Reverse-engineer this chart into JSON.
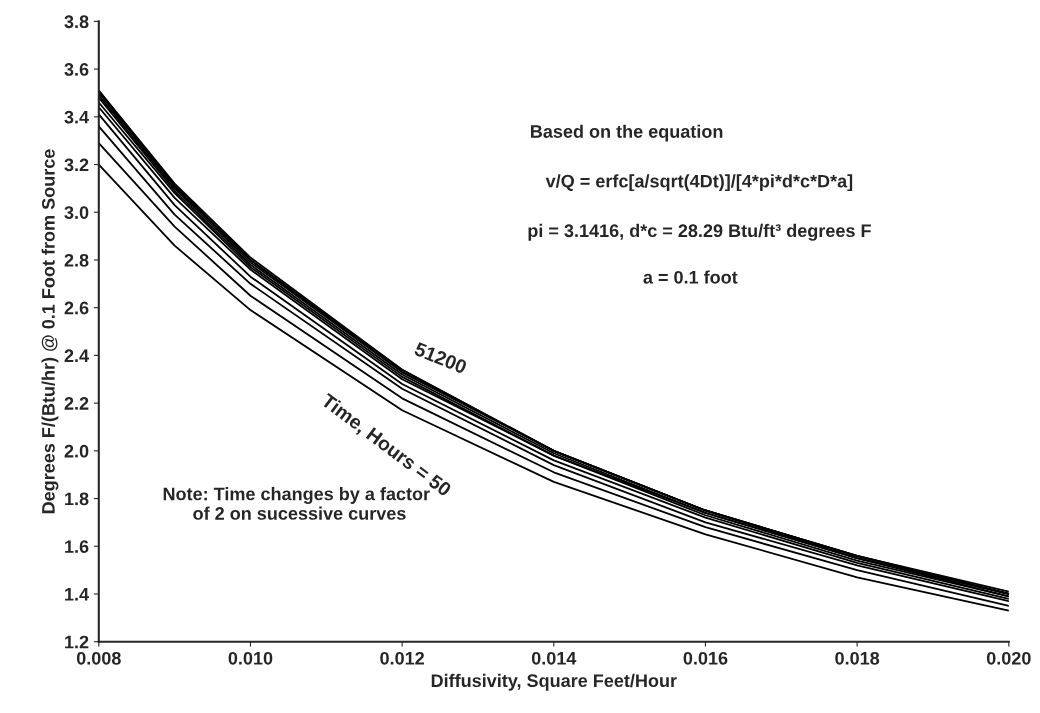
{
  "chart_data": {
    "type": "line",
    "xlabel": "Diffusivity, Square Feet/Hour",
    "ylabel": "Degrees F/(Btu/hr) @ 0.1 Foot from Source",
    "x": [
      0.008,
      0.009,
      0.01,
      0.012,
      0.014,
      0.016,
      0.018,
      0.02
    ],
    "series": [
      {
        "color": "#000000",
        "values": [
          3.2,
          2.86,
          2.59,
          2.17,
          1.87,
          1.65,
          1.47,
          1.33
        ]
      },
      {
        "color": "#000000",
        "values": [
          3.29,
          2.94,
          2.65,
          2.22,
          1.91,
          1.68,
          1.5,
          1.35
        ]
      },
      {
        "color": "#000000",
        "values": [
          3.36,
          2.99,
          2.7,
          2.26,
          1.94,
          1.7,
          1.52,
          1.37
        ]
      },
      {
        "color": "#000000",
        "values": [
          3.41,
          3.03,
          2.73,
          2.28,
          1.96,
          1.72,
          1.53,
          1.38
        ]
      },
      {
        "color": "#000000",
        "values": [
          3.44,
          3.06,
          2.76,
          2.3,
          1.98,
          1.73,
          1.54,
          1.39
        ]
      },
      {
        "color": "#000000",
        "values": [
          3.46,
          3.08,
          2.77,
          2.31,
          1.98,
          1.74,
          1.55,
          1.39
        ]
      },
      {
        "color": "#000000",
        "values": [
          3.48,
          3.09,
          2.78,
          2.32,
          1.99,
          1.74,
          1.55,
          1.4
        ]
      },
      {
        "color": "#000000",
        "values": [
          3.49,
          3.1,
          2.79,
          2.33,
          2.0,
          1.75,
          1.55,
          1.4
        ]
      },
      {
        "color": "#000000",
        "values": [
          3.5,
          3.11,
          2.8,
          2.33,
          2.0,
          1.75,
          1.56,
          1.4
        ]
      },
      {
        "color": "#000000",
        "values": [
          3.51,
          3.11,
          2.8,
          2.34,
          2.0,
          1.75,
          1.56,
          1.4
        ]
      },
      {
        "color": "#000000",
        "values": [
          3.51,
          3.12,
          2.81,
          2.34,
          2.0,
          1.75,
          1.56,
          1.41
        ]
      }
    ],
    "xlim": [
      0.008,
      0.02
    ],
    "xticks": [
      0.008,
      {
        "value": 0.01,
        "label": "0.010"
      },
      0.012,
      0.014,
      0.016,
      0.018,
      {
        "value": 0.02,
        "label": "0.020"
      }
    ],
    "ylim": [
      1.2,
      3.8
    ],
    "yticks": [
      1.2,
      1.4,
      1.6,
      1.8,
      {
        "value": 2,
        "label": "2.0"
      },
      2.2,
      2.4,
      2.6,
      2.8,
      {
        "value": 3,
        "label": "3.0"
      },
      3.2,
      3.4,
      3.6,
      3.8
    ],
    "grid": false,
    "legend": false,
    "marker": "none",
    "line_style": "solid",
    "annotations": [
      "51200",
      "Time, Hours = 50",
      "Based on the equation",
      "v/Q = erfc[a/sqrt(4Dt)]/[4*pi*d*c*D*a]",
      "pi = 3.1416, d*c = 28.29 Btu/ft³ degrees F",
      "a = 0.1 foot",
      "Note: Time changes by a factor\n      of 2 on sucessive curves"
    ]
  }
}
